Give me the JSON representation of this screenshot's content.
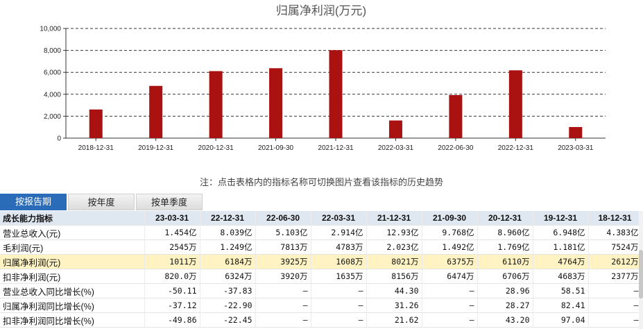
{
  "chart_data": {
    "type": "bar",
    "title": "归属净利润(万元)",
    "categories": [
      "2018-12-31",
      "2019-12-31",
      "2020-12-31",
      "2021-09-30",
      "2021-12-31",
      "2022-03-31",
      "2022-06-30",
      "2022-12-31",
      "2023-03-31"
    ],
    "values": [
      2612,
      4764,
      6110,
      6375,
      8021,
      1608,
      3925,
      6184,
      1011
    ],
    "ylim": [
      0,
      10000
    ],
    "yticks": [
      "0",
      "2,000",
      "4,000",
      "6,000",
      "8,000",
      "10,000"
    ],
    "ytick_values": [
      0,
      2000,
      4000,
      6000,
      8000,
      10000
    ],
    "grid": true,
    "bar_color": "#aa1111"
  },
  "note": "注：点击表格内的指标名称可切换图片查看该指标的历史趋势",
  "tabs": [
    {
      "label": "按报告期",
      "active": true
    },
    {
      "label": "按年度",
      "active": false
    },
    {
      "label": "按单季度",
      "active": false
    }
  ],
  "table": {
    "header_label": "成长能力指标",
    "columns": [
      "23-03-31",
      "22-12-31",
      "22-06-30",
      "22-03-31",
      "21-12-31",
      "21-09-30",
      "20-12-31",
      "19-12-31",
      "18-12-31"
    ],
    "rows": [
      {
        "label": "营业总收入(元)",
        "values": [
          "1.454亿",
          "8.039亿",
          "5.103亿",
          "2.914亿",
          "12.93亿",
          "9.768亿",
          "8.960亿",
          "6.948亿",
          "4.383亿"
        ]
      },
      {
        "label": "毛利润(元)",
        "values": [
          "2545万",
          "1.249亿",
          "7813万",
          "4783万",
          "2.023亿",
          "1.492亿",
          "1.769亿",
          "1.181亿",
          "7524万"
        ]
      },
      {
        "label": "归属净利润(元)",
        "values": [
          "1011万",
          "6184万",
          "3925万",
          "1608万",
          "8021万",
          "6375万",
          "6110万",
          "4764万",
          "2612万"
        ]
      },
      {
        "label": "扣非净利润(元)",
        "values": [
          "820.0万",
          "6324万",
          "3920万",
          "1635万",
          "8156万",
          "6474万",
          "6706万",
          "4683万",
          "2377万"
        ]
      },
      {
        "label": "营业总收入同比增长(%)",
        "values": [
          "-50.11",
          "-37.83",
          "—",
          "—",
          "44.30",
          "—",
          "28.96",
          "58.51",
          "—"
        ]
      },
      {
        "label": "归属净利润同比增长(%)",
        "values": [
          "-37.12",
          "-22.90",
          "—",
          "—",
          "31.26",
          "—",
          "28.27",
          "82.41",
          "—"
        ]
      },
      {
        "label": "扣非净利润同比增长(%)",
        "values": [
          "-49.86",
          "-22.45",
          "—",
          "—",
          "21.62",
          "—",
          "43.20",
          "97.04",
          "—"
        ]
      }
    ]
  }
}
